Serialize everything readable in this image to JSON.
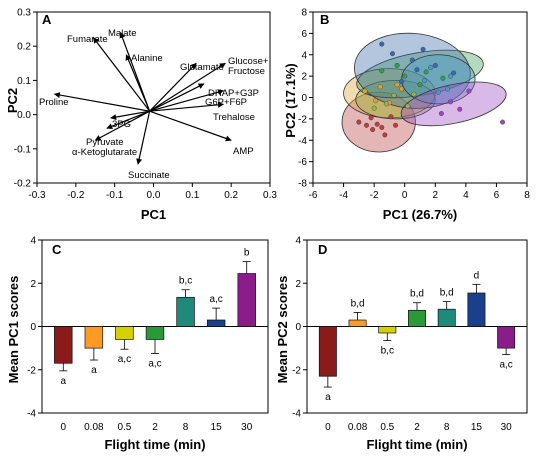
{
  "chart_data": [
    {
      "panel": "A",
      "type": "biplot",
      "xlabel": "PC1",
      "ylabel": "PC2",
      "xlim": [
        -0.3,
        0.3
      ],
      "ylim": [
        -0.2,
        0.3
      ],
      "xticks": [
        "-0.3",
        "-0.2",
        "-0.1",
        "0.0",
        "0.1",
        "0.2",
        "0.3"
      ],
      "yticks": [
        "-0.2",
        "-0.1",
        "0.0",
        "0.1",
        "0.2",
        "0.3"
      ],
      "origin": [
        -0.01,
        0.01
      ],
      "vectors": [
        {
          "label": "Fumarate",
          "x": -0.155,
          "y": 0.225
        },
        {
          "label": "Malate",
          "x": -0.085,
          "y": 0.24
        },
        {
          "label": "Alanine",
          "x": -0.07,
          "y": 0.175
        },
        {
          "label": "Glutamate",
          "x": 0.11,
          "y": 0.15
        },
        {
          "label": "Glucose+ Fructose",
          "x": 0.185,
          "y": 0.15
        },
        {
          "label": "DHAP+G3P",
          "x": 0.13,
          "y": 0.09
        },
        {
          "label": "G6P+F6P",
          "x": 0.18,
          "y": 0.07
        },
        {
          "label": "Trehalose",
          "x": 0.18,
          "y": 0.03
        },
        {
          "label": "AMP",
          "x": 0.2,
          "y": -0.075
        },
        {
          "label": "Succinate",
          "x": -0.04,
          "y": -0.145
        },
        {
          "label": "Proline",
          "x": -0.255,
          "y": 0.06
        },
        {
          "label": "3PG",
          "x": -0.11,
          "y": -0.01
        },
        {
          "label": "Pyruvate",
          "x": -0.12,
          "y": -0.04
        },
        {
          "label": "α-Ketoglutarate",
          "x": -0.15,
          "y": -0.075
        }
      ],
      "vector_label_text": [
        "Fumarate",
        "Malate",
        "Alanine",
        "Glutamate",
        "Glucose+",
        "Fructose",
        "DHAP+G3P",
        "G6P+F6P",
        "Trehalose",
        "AMP",
        "Succinate",
        "Proline",
        "3PG",
        "Pyruvate",
        "α-Ketoglutarate"
      ]
    },
    {
      "panel": "B",
      "type": "scatter",
      "xlabel": "PC1 (26.7%)",
      "ylabel": "PC2 (17.1%)",
      "xlim": [
        -6,
        8
      ],
      "ylim": [
        -8,
        8
      ],
      "xticks": [
        "-6",
        "-4",
        "-2",
        "0",
        "2",
        "4",
        "6",
        "8"
      ],
      "yticks": [
        "-8",
        "-6",
        "-4",
        "-2",
        "0",
        "2",
        "4",
        "6",
        "8"
      ],
      "series": [
        {
          "color": "#b84040",
          "ellipse": {
            "cx": -1.7,
            "cy": -2.3,
            "rx": 2.4,
            "ry": 2.8,
            "angle": 0
          },
          "points": [
            [
              -3,
              -2.3
            ],
            [
              -2.5,
              -2.6
            ],
            [
              -1.8,
              -2.5
            ],
            [
              -2.2,
              -1.9
            ],
            [
              -1.5,
              -2.8
            ],
            [
              -0.9,
              -1.8
            ],
            [
              -1.3,
              -3.5
            ],
            [
              -2.1,
              -3.0
            ],
            [
              -0.6,
              -2.6
            ]
          ]
        },
        {
          "color": "#e0a030",
          "ellipse": {
            "cx": -1.0,
            "cy": 0.4,
            "rx": 3.0,
            "ry": 2.3,
            "angle": 0
          },
          "points": [
            [
              -2.6,
              0.6
            ],
            [
              -1.6,
              1.0
            ],
            [
              -1.0,
              -0.5
            ],
            [
              -0.5,
              1.2
            ],
            [
              -1.9,
              -0.3
            ],
            [
              -0.2,
              0.8
            ]
          ]
        },
        {
          "color": "#8fb84c",
          "ellipse": {
            "cx": -0.6,
            "cy": -0.2,
            "rx": 2.6,
            "ry": 1.8,
            "angle": 0
          },
          "points": [
            [
              -1.2,
              -0.6
            ],
            [
              -2.0,
              -1.0
            ],
            [
              0.2,
              -0.8
            ],
            [
              -0.7,
              0.2
            ],
            [
              0.6,
              0.3
            ]
          ]
        },
        {
          "color": "#3a9a50",
          "ellipse": {
            "cx": 1.0,
            "cy": 2.2,
            "rx": 4.2,
            "ry": 2.0,
            "angle": -10
          },
          "points": [
            [
              -1.5,
              2.5
            ],
            [
              0.0,
              2.0
            ],
            [
              1.4,
              2.4
            ],
            [
              2.5,
              1.8
            ],
            [
              -0.5,
              3.0
            ],
            [
              1.0,
              1.2
            ]
          ]
        },
        {
          "color": "#3a6aa8",
          "ellipse": {
            "cx": 0.5,
            "cy": 2.5,
            "rx": 3.8,
            "ry": 3.5,
            "angle": 5
          },
          "points": [
            [
              -1.5,
              5.0
            ],
            [
              -0.8,
              4.1
            ],
            [
              0.5,
              3.5
            ],
            [
              1.2,
              4.5
            ],
            [
              2.0,
              3.0
            ],
            [
              -0.2,
              1.5
            ],
            [
              0.8,
              2.6
            ],
            [
              3.2,
              2.3
            ]
          ]
        },
        {
          "color": "#4a9ac8",
          "ellipse": {
            "cx": 2.2,
            "cy": 1.7,
            "rx": 2.4,
            "ry": 2.3,
            "angle": 0
          },
          "points": [
            [
              1.3,
              1.6
            ],
            [
              2.2,
              0.5
            ],
            [
              3.0,
              2.0
            ],
            [
              2.8,
              0.8
            ],
            [
              1.7,
              2.8
            ]
          ]
        },
        {
          "color": "#9a48c0",
          "ellipse": {
            "cx": 3.2,
            "cy": -0.6,
            "rx": 3.5,
            "ry": 1.8,
            "angle": -12
          },
          "points": [
            [
              6.4,
              -2.3
            ],
            [
              4.2,
              0.6
            ],
            [
              3.0,
              -0.4
            ],
            [
              2.4,
              -1.5
            ],
            [
              3.6,
              -1.1
            ]
          ]
        }
      ]
    },
    {
      "panel": "C",
      "type": "bar",
      "xlabel": "Flight time (min)",
      "ylabel": "Mean PC1 scores",
      "ylim": [
        -4,
        4
      ],
      "yticks": [
        "-4",
        "-2",
        "0",
        "2",
        "4"
      ],
      "categories": [
        "0",
        "0.08",
        "0.5",
        "2",
        "8",
        "15",
        "30"
      ],
      "values": [
        -1.7,
        -1.0,
        -0.6,
        -0.6,
        1.35,
        0.3,
        2.45
      ],
      "errors": [
        0.35,
        0.55,
        0.45,
        0.65,
        0.35,
        0.55,
        0.55
      ],
      "letters": [
        "a",
        "a",
        "a,c",
        "a,c",
        "b,c",
        "a,c",
        "b"
      ],
      "colors": [
        "#8b1a1a",
        "#ff9a22",
        "#d6d000",
        "#2a9a38",
        "#1f8a7a",
        "#1a3f8c",
        "#8a1d8a"
      ]
    },
    {
      "panel": "D",
      "type": "bar",
      "xlabel": "Flight time (min)",
      "ylabel": "Mean PC2 scores",
      "ylim": [
        -4,
        4
      ],
      "yticks": [
        "-4",
        "-2",
        "0",
        "2",
        "4"
      ],
      "categories": [
        "0",
        "0.08",
        "0.5",
        "2",
        "8",
        "15",
        "30"
      ],
      "values": [
        -2.3,
        0.3,
        -0.3,
        0.75,
        0.8,
        1.55,
        -1.0
      ],
      "errors": [
        0.5,
        0.35,
        0.35,
        0.35,
        0.35,
        0.4,
        0.3
      ],
      "letters": [
        "a",
        "b,d",
        "b,c",
        "b,d",
        "b,d",
        "d",
        "a,c"
      ],
      "colors": [
        "#8b1a1a",
        "#ff9a22",
        "#d6d000",
        "#2a9a38",
        "#1f8a7a",
        "#1a3f8c",
        "#8a1d8a"
      ]
    }
  ],
  "panel_labels": [
    "A",
    "B",
    "C",
    "D"
  ]
}
